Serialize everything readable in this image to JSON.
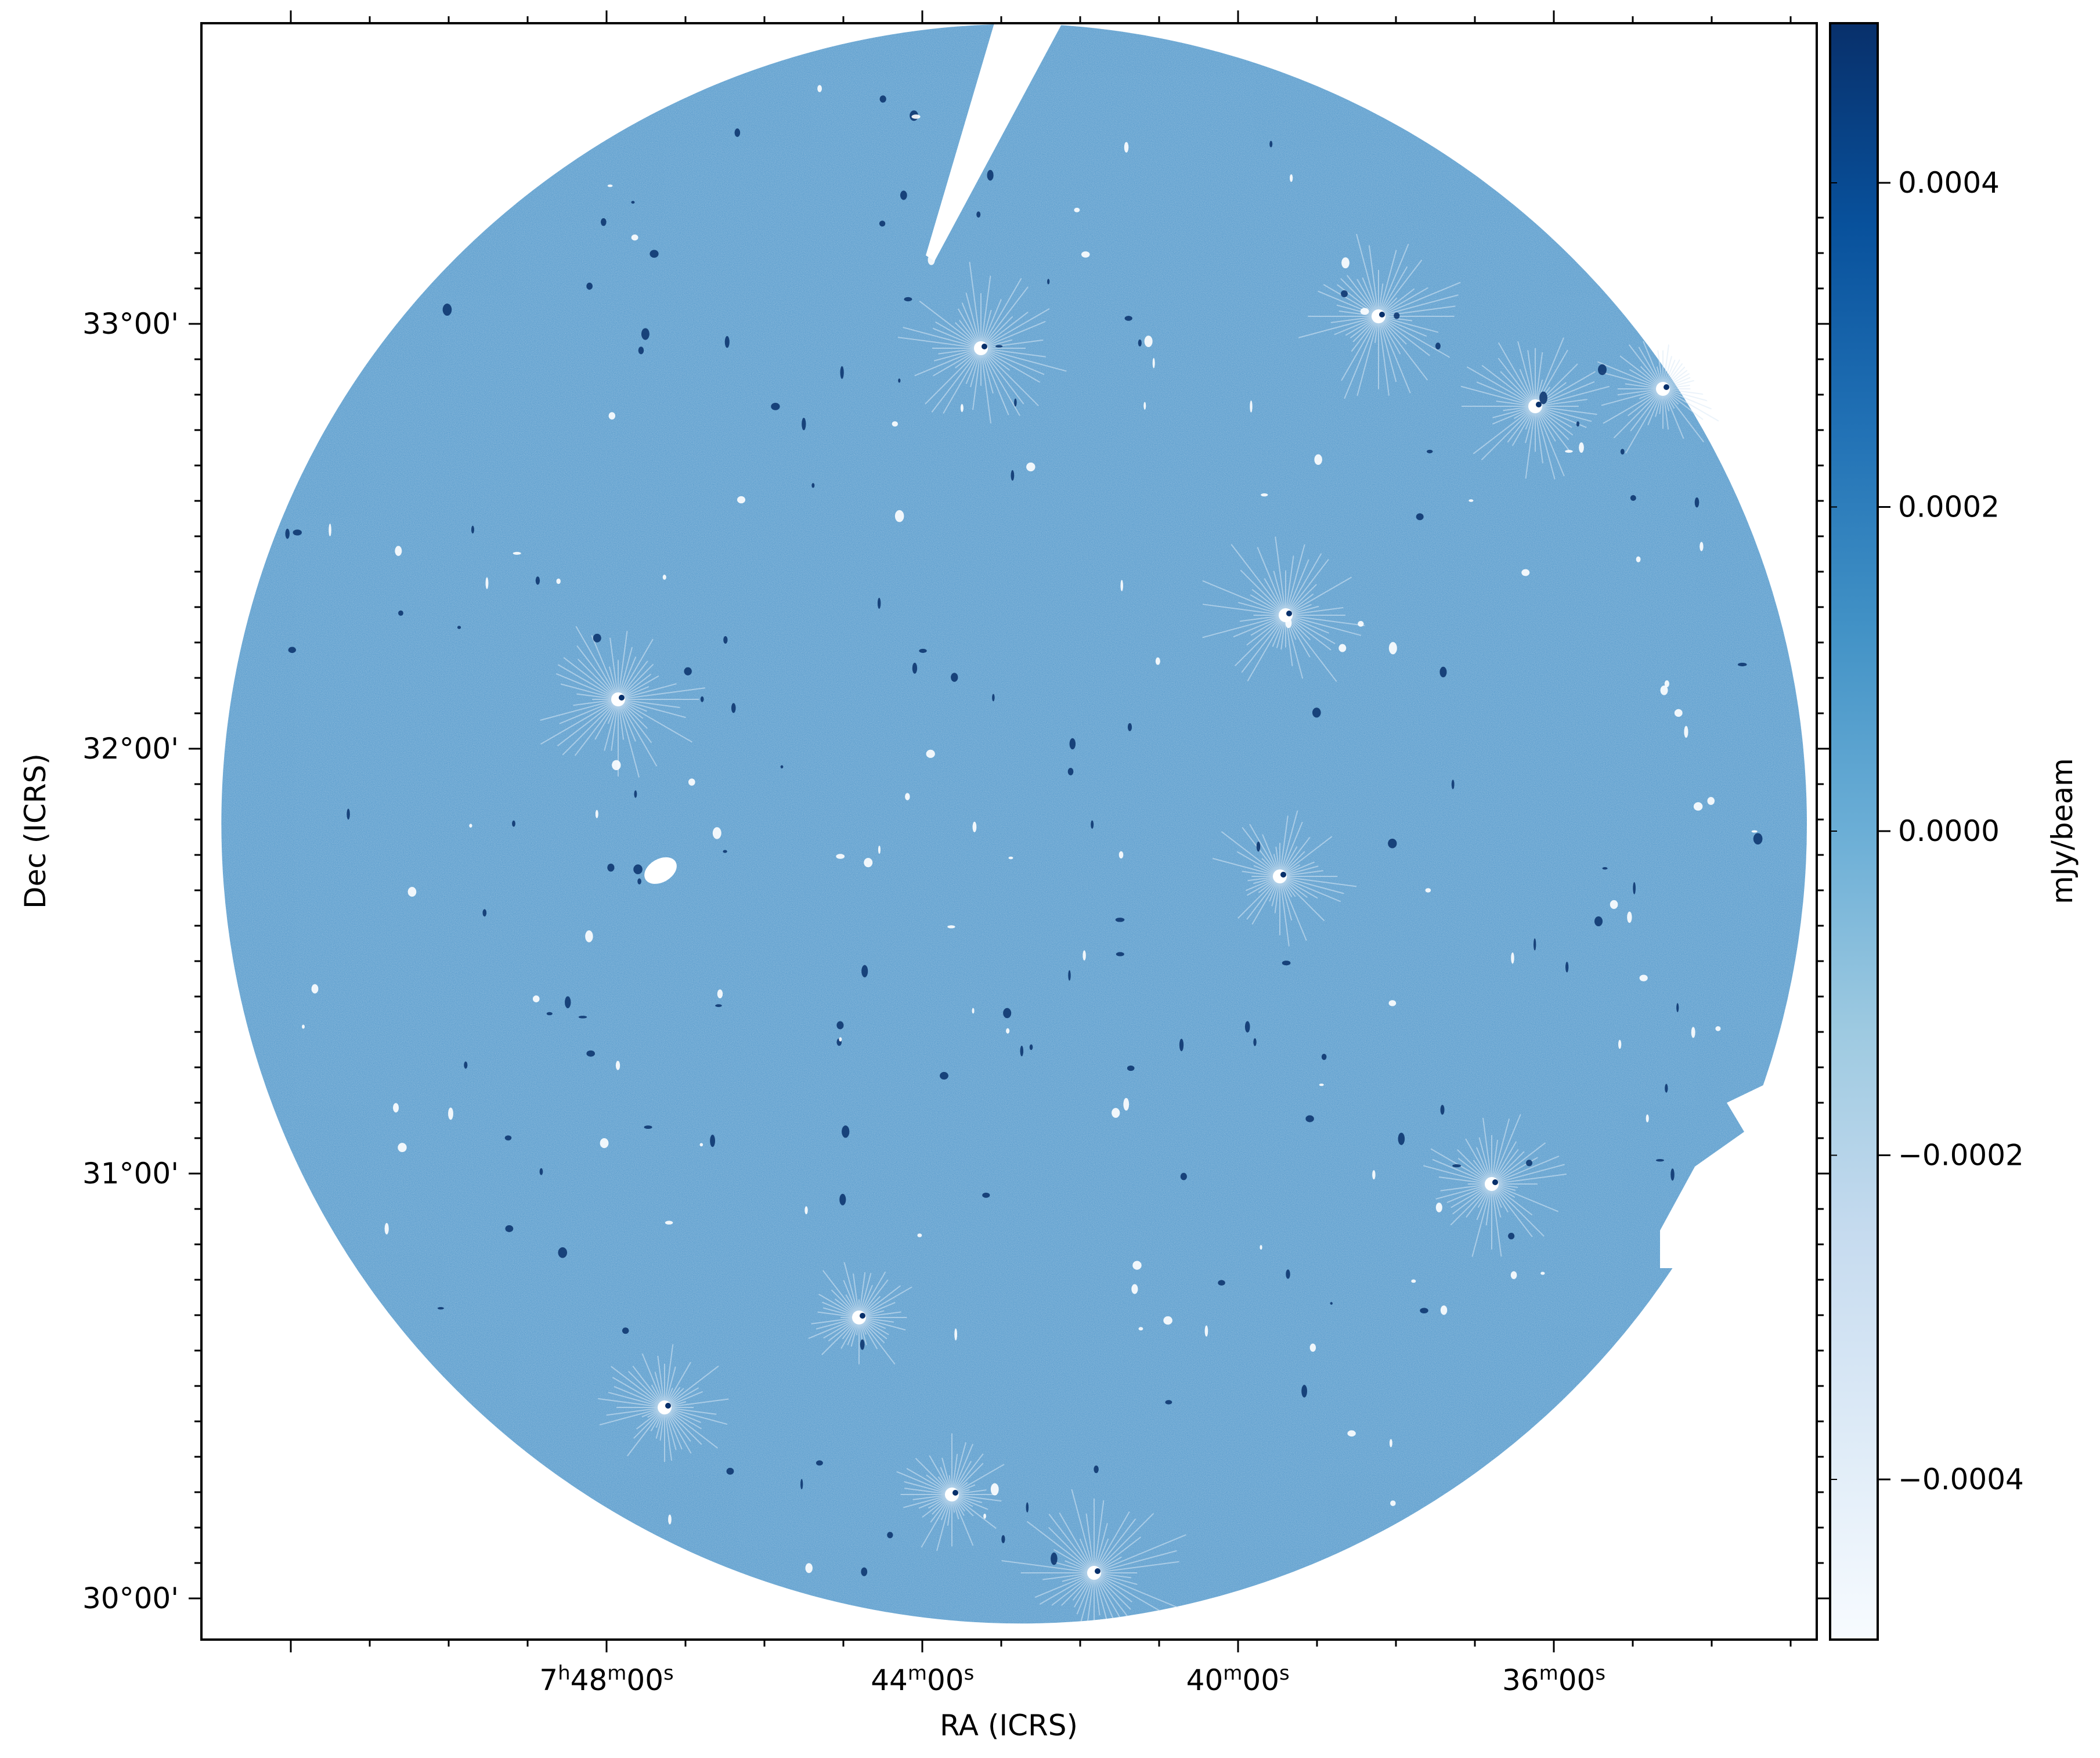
{
  "chart_data": {
    "type": "heatmap",
    "title": "",
    "xlabel": "RA (ICRS)",
    "ylabel": "Dec (ICRS)",
    "x_axis": {
      "ticks": [
        {
          "value": 7.8,
          "label": "7h48m00s",
          "parts": [
            {
              "t": "7",
              "sup": false
            },
            {
              "t": "h",
              "sup": true
            },
            {
              "t": "48",
              "sup": false
            },
            {
              "t": "m",
              "sup": true
            },
            {
              "t": "00",
              "sup": false
            },
            {
              "t": "s",
              "sup": true
            }
          ]
        },
        {
          "value": 7.7333,
          "label": "44m00s",
          "parts": [
            {
              "t": "44",
              "sup": false
            },
            {
              "t": "m",
              "sup": true
            },
            {
              "t": "00",
              "sup": false
            },
            {
              "t": "s",
              "sup": true
            }
          ]
        },
        {
          "value": 7.6667,
          "label": "40m00s",
          "parts": [
            {
              "t": "40",
              "sup": false
            },
            {
              "t": "m",
              "sup": true
            },
            {
              "t": "00",
              "sup": false
            },
            {
              "t": "s",
              "sup": true
            }
          ]
        },
        {
          "value": 7.6,
          "label": "36m00s",
          "parts": [
            {
              "t": "36",
              "sup": false
            },
            {
              "t": "m",
              "sup": true
            },
            {
              "t": "00",
              "sup": false
            },
            {
              "t": "s",
              "sup": true
            }
          ]
        }
      ]
    },
    "y_axis": {
      "ticks": [
        {
          "value": 33.0,
          "label": "33°00'"
        },
        {
          "value": 32.0,
          "label": "32°00'"
        },
        {
          "value": 31.0,
          "label": "31°00'"
        },
        {
          "value": 30.0,
          "label": "30°00'"
        }
      ]
    },
    "colorbar": {
      "label": "mJy/beam",
      "colormap": "Blues",
      "vmin": -0.0005,
      "vmax": 0.0005,
      "ticks": [
        {
          "value": 0.0004,
          "label": "0.0004"
        },
        {
          "value": 0.0002,
          "label": "0.0002"
        },
        {
          "value": 0.0,
          "label": "0.0000"
        },
        {
          "value": -0.0002,
          "label": "−0.0002"
        },
        {
          "value": -0.0004,
          "label": "−0.0004"
        }
      ]
    },
    "image": {
      "description": "Circular radio continuum image, near-zero mean noise with scattered point sources",
      "background_color": "#63a2d0",
      "source_color": "#08306b"
    }
  }
}
